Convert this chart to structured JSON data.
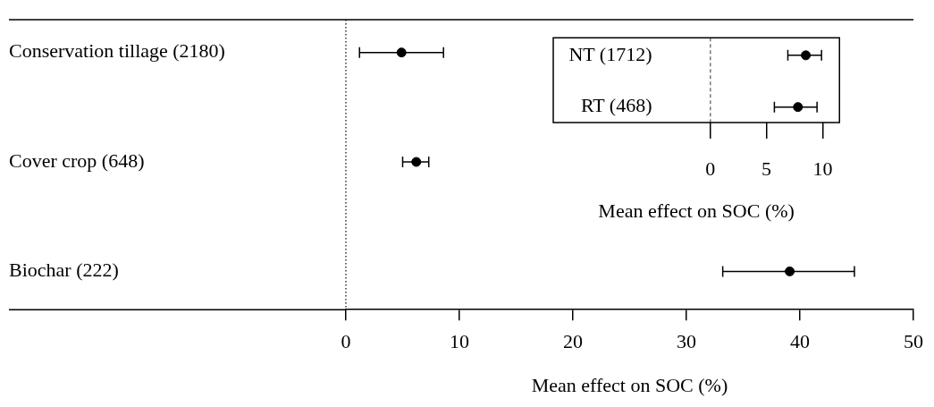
{
  "chart_data": [
    {
      "type": "scatter",
      "orientation": "horizontal",
      "xlabel": "Mean effect on SOC (%)",
      "categories": [
        "Conservation tillage (2180)",
        "Cover crop (648)",
        "Biochar (222)"
      ],
      "values": [
        4.9,
        6.2,
        39.1
      ],
      "errors": [
        [
          1.2,
          8.6
        ],
        [
          5.0,
          7.3
        ],
        [
          33.2,
          44.8
        ]
      ],
      "color": "#000000",
      "marker": "circle",
      "xlim": [
        0,
        50
      ],
      "xticks": [
        0,
        10,
        20,
        30,
        40,
        50
      ],
      "ref_lines": [
        {
          "axis": "x",
          "value": 0,
          "line_style": "dotted",
          "color": "#000000"
        }
      ],
      "grid": false,
      "legend": false
    },
    {
      "type": "scatter",
      "orientation": "horizontal",
      "xlabel": "Mean effect on SOC (%)",
      "categories": [
        "NT (1712)",
        "RT (468)"
      ],
      "values": [
        8.5,
        7.8
      ],
      "errors": [
        [
          6.9,
          9.9
        ],
        [
          5.7,
          9.5
        ]
      ],
      "color": "#000000",
      "marker": "circle",
      "xlim": [
        -14,
        11.5
      ],
      "xticks": [
        0,
        5,
        10
      ],
      "ref_lines": [
        {
          "axis": "x",
          "value": 0,
          "line_style": "dashed",
          "color": "#555555"
        }
      ],
      "grid": false,
      "legend": false
    }
  ]
}
